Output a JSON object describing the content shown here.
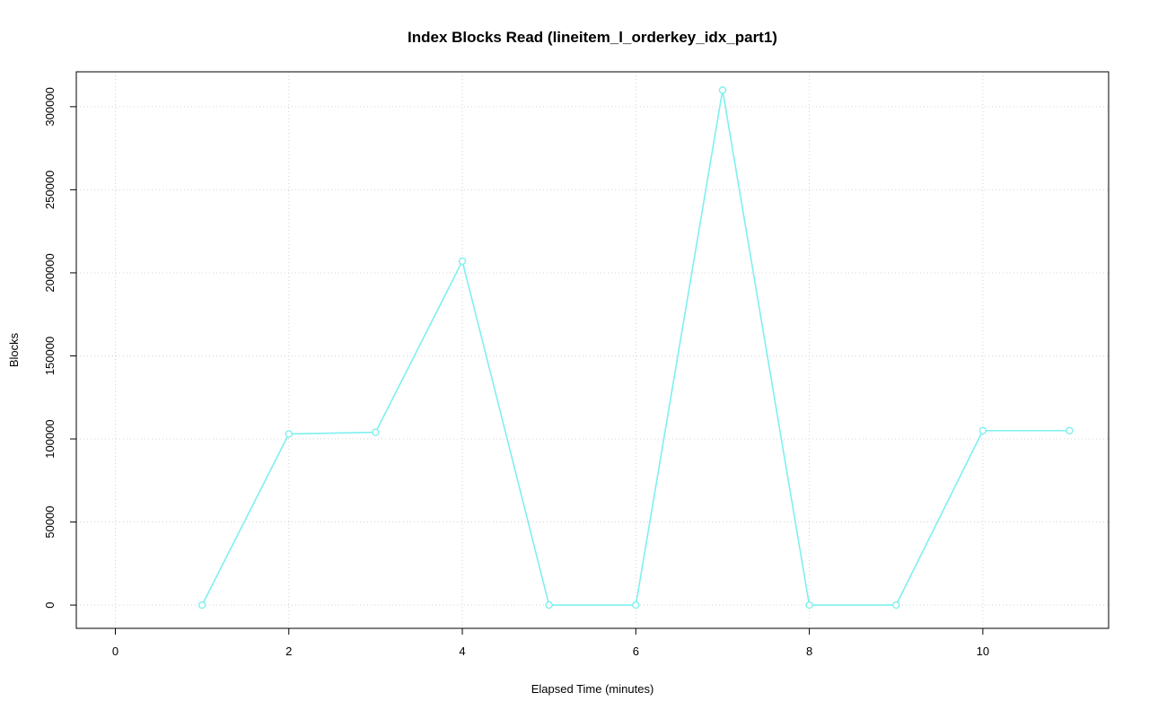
{
  "title": "Index Blocks Read (lineitem_l_orderkey_idx_part1)",
  "chart_data": {
    "type": "line",
    "title": "Index Blocks Read (lineitem_l_orderkey_idx_part1)",
    "xlabel": "Elapsed Time (minutes)",
    "ylabel": "Blocks",
    "x": [
      1,
      2,
      3,
      4,
      5,
      6,
      7,
      8,
      9,
      10,
      11
    ],
    "values": [
      0,
      103000,
      104000,
      207000,
      0,
      0,
      310000,
      0,
      0,
      105000,
      105000
    ],
    "xlim": [
      -0.45,
      11.45
    ],
    "ylim": [
      -14000,
      321000
    ],
    "xticks": [
      0,
      2,
      4,
      6,
      8,
      10
    ],
    "yticks": [
      0,
      50000,
      100000,
      150000,
      200000,
      250000,
      300000
    ],
    "grid": true,
    "grid_color": "#d3d3d3",
    "line_color": "#7fefef",
    "point_style": "open-circle",
    "axis_color": "#000000",
    "legend": "none"
  }
}
